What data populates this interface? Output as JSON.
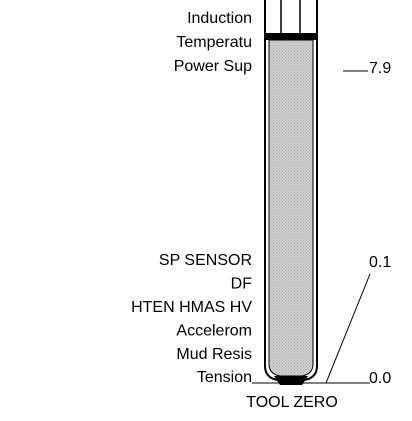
{
  "upper_labels": [
    "Induction",
    "Temperatu",
    "Power Sup"
  ],
  "lower_labels": [
    "SP SENSOR",
    "DF",
    "HTEN HMAS HV",
    "Accelerom",
    "Mud Resis",
    "Tension"
  ],
  "depth_labels": [
    "7.9",
    "0.1",
    "0.0"
  ],
  "footer": "TOOL ZERO"
}
